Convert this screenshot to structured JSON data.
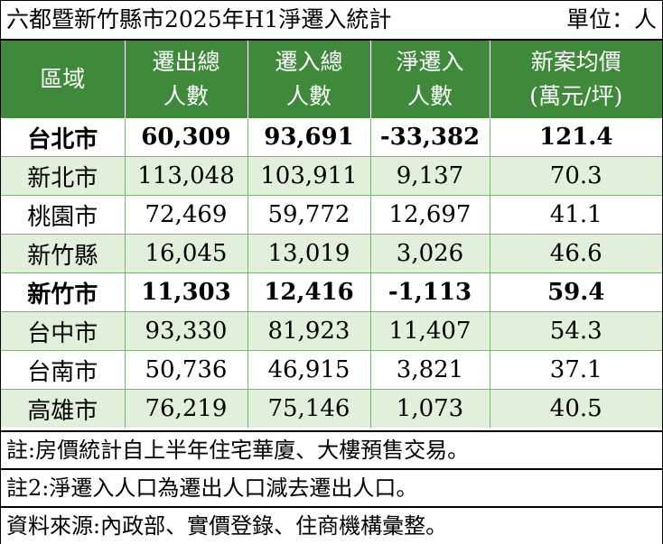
{
  "title": "六都暨新竹縣市2025年H1淨遷入統計",
  "unit": "單位：人",
  "headers": [
    [
      "區域"
    ],
    [
      "遷出總",
      "人數"
    ],
    [
      "遷入總",
      "人數"
    ],
    [
      "淨遷入",
      "人數"
    ],
    [
      "新案均價",
      "(萬元/坪)"
    ]
  ],
  "rows": [
    [
      "台北市",
      "60,309",
      "93,691",
      "-33,382",
      "121.4"
    ],
    [
      "新北市",
      "113,048",
      "103,911",
      "9,137",
      "70.3"
    ],
    [
      "桃園市",
      "72,469",
      "59,772",
      "12,697",
      "41.1"
    ],
    [
      "新竹縣",
      "16,045",
      "13,019",
      "3,026",
      "46.6"
    ],
    [
      "新竹市",
      "11,303",
      "12,416",
      "-1,113",
      "59.4"
    ],
    [
      "台中市",
      "93,330",
      "81,923",
      "11,407",
      "54.3"
    ],
    [
      "台南市",
      "50,736",
      "46,915",
      "3,821",
      "37.1"
    ],
    [
      "高雄市",
      "76,219",
      "75,146",
      "1,073",
      "40.5"
    ]
  ],
  "bold_rows": [
    0,
    4
  ],
  "notes": [
    "註:房價統計自上半年住宅華廈、大樓預售交易。",
    "註2:淨遷入人口為遷出人口減去遷出人口。",
    "資料來源:內政部、實價登錄、住商機構彙整。"
  ],
  "colors": {
    "header_bg": "#3f8a3a",
    "header_text": "#ffffff",
    "stripe_bg": "#e2efda"
  }
}
